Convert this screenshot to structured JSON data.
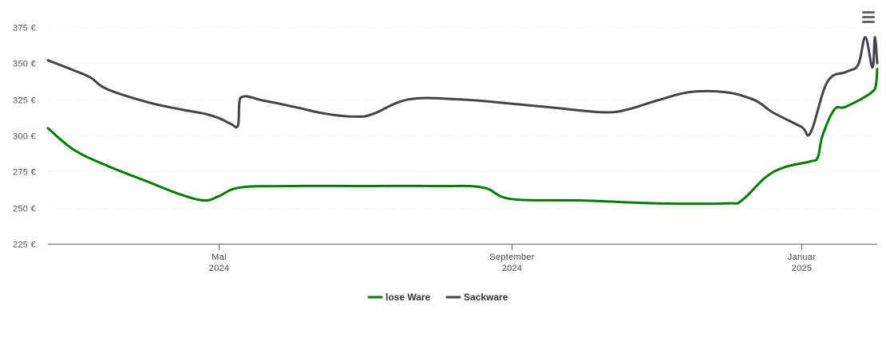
{
  "menu": {
    "icon": "hamburger-menu-icon"
  },
  "chart_data": {
    "type": "line",
    "title": "",
    "xlabel": "",
    "ylabel": "",
    "x_unit": "date",
    "xlim": [
      "2024-02-19",
      "2025-02-02"
    ],
    "ylim": [
      225,
      375
    ],
    "y_ticks": [
      225,
      250,
      275,
      300,
      325,
      350,
      375
    ],
    "y_tick_labels": [
      "225 €",
      "250 €",
      "275 €",
      "300 €",
      "325 €",
      "350 €",
      "375 €"
    ],
    "x_ticks": [
      {
        "date": "2024-05-01",
        "label1": "Mai",
        "label2": "2024"
      },
      {
        "date": "2024-09-01",
        "label1": "September",
        "label2": "2024"
      },
      {
        "date": "2025-01-01",
        "label1": "Januar",
        "label2": "2025"
      }
    ],
    "grid": true,
    "legend_position": "bottom-center",
    "series": [
      {
        "name": "lose Ware",
        "color": "#007a00",
        "points": [
          [
            "2024-02-19",
            305
          ],
          [
            "2024-03-01",
            290
          ],
          [
            "2024-03-15",
            279
          ],
          [
            "2024-04-01",
            268
          ],
          [
            "2024-04-15",
            259
          ],
          [
            "2024-04-25",
            255
          ],
          [
            "2024-05-01",
            258
          ],
          [
            "2024-05-10",
            264
          ],
          [
            "2024-06-01",
            265
          ],
          [
            "2024-07-01",
            265
          ],
          [
            "2024-08-01",
            265
          ],
          [
            "2024-08-20",
            264
          ],
          [
            "2024-09-01",
            256
          ],
          [
            "2024-10-01",
            255
          ],
          [
            "2024-11-01",
            253
          ],
          [
            "2024-12-01",
            253
          ],
          [
            "2024-12-07",
            255
          ],
          [
            "2024-12-17",
            271
          ],
          [
            "2024-12-25",
            278
          ],
          [
            "2025-01-05",
            282
          ],
          [
            "2025-01-08",
            285
          ],
          [
            "2025-01-10",
            300
          ],
          [
            "2025-01-15",
            318
          ],
          [
            "2025-01-20",
            320
          ],
          [
            "2025-02-01",
            332
          ],
          [
            "2025-02-02",
            346
          ]
        ]
      },
      {
        "name": "Sackware",
        "color": "#434348",
        "points": [
          [
            "2024-02-19",
            352
          ],
          [
            "2024-03-01",
            345
          ],
          [
            "2024-03-08",
            340
          ],
          [
            "2024-03-15",
            332
          ],
          [
            "2024-04-01",
            323
          ],
          [
            "2024-04-15",
            318
          ],
          [
            "2024-04-25",
            315
          ],
          [
            "2024-05-01",
            312
          ],
          [
            "2024-05-06",
            308
          ],
          [
            "2024-05-09",
            307
          ],
          [
            "2024-05-10",
            326
          ],
          [
            "2024-05-20",
            324
          ],
          [
            "2024-06-01",
            320
          ],
          [
            "2024-06-15",
            315
          ],
          [
            "2024-06-28",
            313
          ],
          [
            "2024-07-05",
            315
          ],
          [
            "2024-07-20",
            325
          ],
          [
            "2024-08-10",
            325
          ],
          [
            "2024-09-01",
            322
          ],
          [
            "2024-09-20",
            319
          ],
          [
            "2024-10-10",
            316
          ],
          [
            "2024-10-20",
            318
          ],
          [
            "2024-11-01",
            324
          ],
          [
            "2024-11-15",
            330
          ],
          [
            "2024-11-30",
            330
          ],
          [
            "2024-12-10",
            326
          ],
          [
            "2024-12-15",
            322
          ],
          [
            "2024-12-20",
            316
          ],
          [
            "2025-01-01",
            306
          ],
          [
            "2025-01-05",
            302
          ],
          [
            "2025-01-12",
            337
          ],
          [
            "2025-01-20",
            344
          ],
          [
            "2025-01-25",
            349
          ],
          [
            "2025-01-28",
            368
          ],
          [
            "2025-01-31",
            347
          ],
          [
            "2025-02-01",
            368
          ],
          [
            "2025-02-02",
            350
          ]
        ]
      }
    ]
  }
}
